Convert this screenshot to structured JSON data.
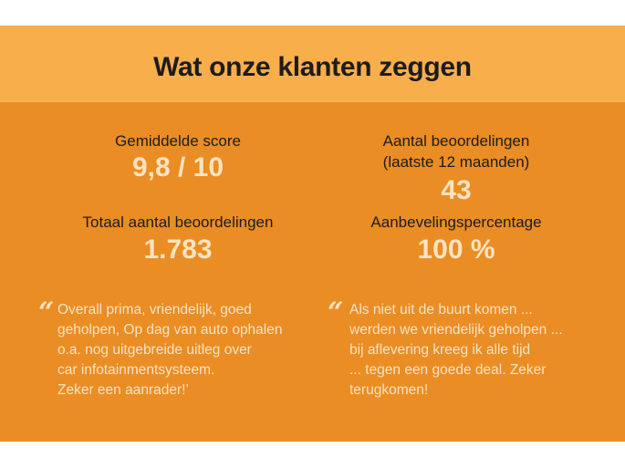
{
  "title": "Wat onze klanten zeggen",
  "stats": [
    {
      "label": "Gemiddelde score",
      "value": "9,8 / 10"
    },
    {
      "label": "Aantal beoordelingen",
      "sublabel": "(laatste 12 maanden)",
      "value": "43"
    },
    {
      "label": "Totaal aantal beoordelingen",
      "value": "1.783"
    },
    {
      "label": "Aanbevelingspercentage",
      "value": "100 %"
    }
  ],
  "quotes": [
    {
      "icon": "quote-icon",
      "mark": "“",
      "text": "Overall prima, vriendelijk, goed\ngeholpen, Op dag van auto ophalen\no.a. nog uitgebreide uitleg over\ncar infotainmentsysteem.\nZeker een aanrader!’"
    },
    {
      "icon": "quote-icon",
      "mark": "“",
      "text": "Als niet uit de buurt komen ...\nwerden we vriendelijk geholpen ...\nbij aflevering kreeg ik alle tijd\n... tegen een goede deal. Zeker\nterugkomen!"
    }
  ],
  "colors": {
    "header": "#F9AE4C",
    "background": "#EA8D24",
    "value": "#FCE3C2"
  }
}
